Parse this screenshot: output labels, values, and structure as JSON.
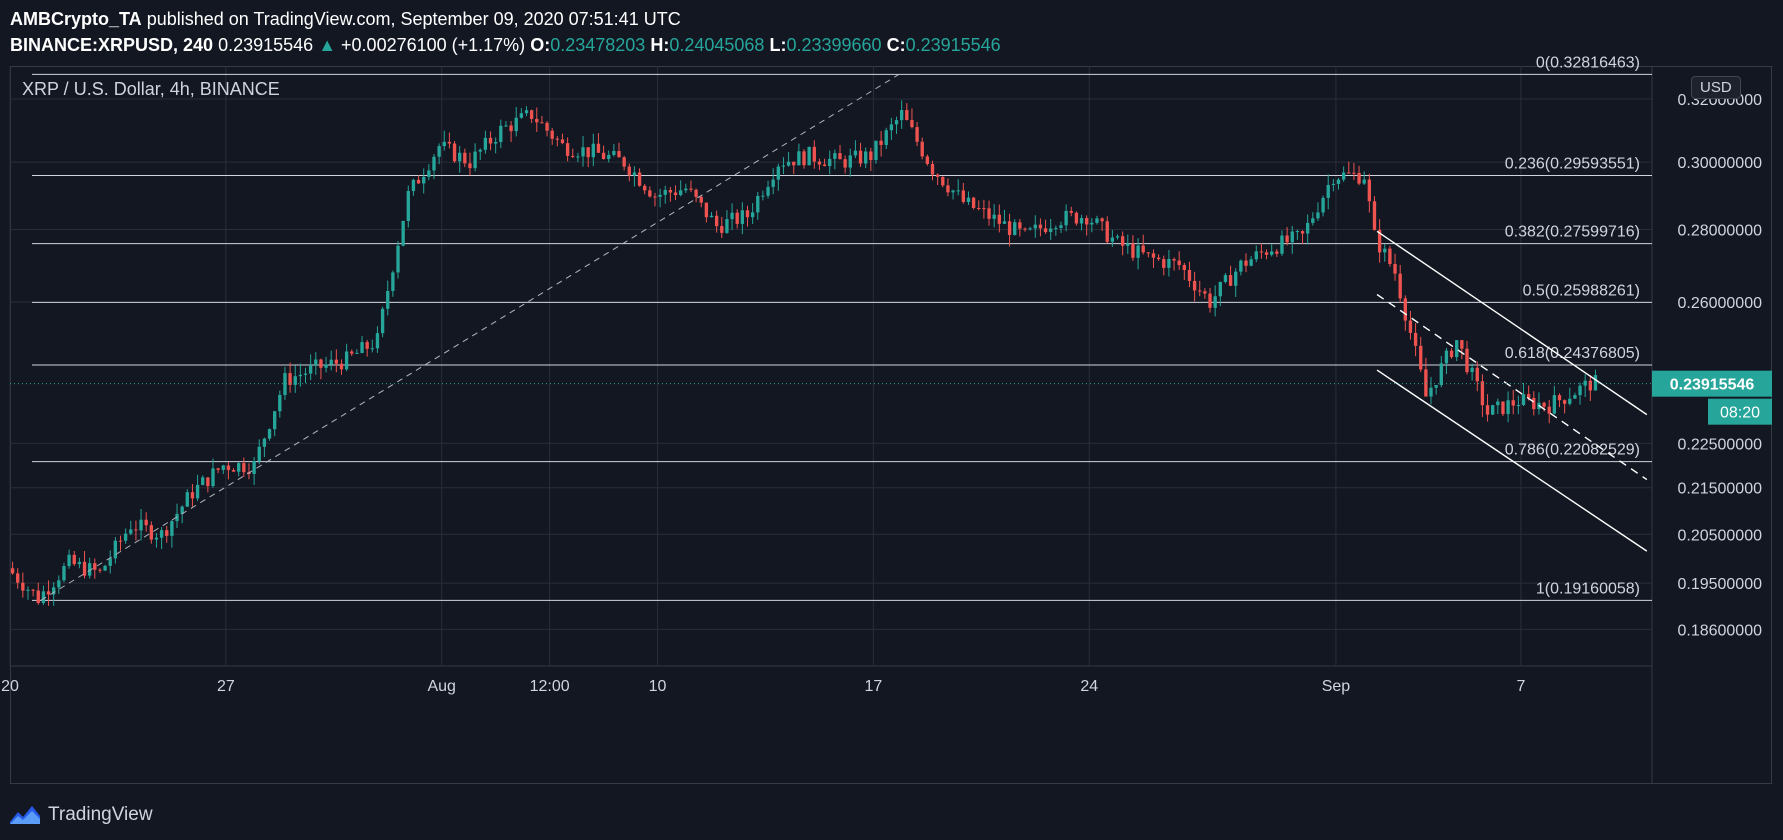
{
  "header": {
    "author": "AMBCrypto_TA",
    "published_text": "published on TradingView.com, September 09, 2020 07:51:41 UTC",
    "symbol": "BINANCE:XRPUSD, 240",
    "last": "0.23915546",
    "change_arrow": "▲",
    "change": "+0.00276100 (+1.17%)",
    "o_label": "O:",
    "o_value": "0.23478203",
    "h_label": "H:",
    "h_value": "0.24045068",
    "l_label": "L:",
    "l_value": "0.23399660",
    "c_label": "C:",
    "c_value": "0.23915546"
  },
  "symbol_title": "XRP / U.S. Dollar, 4h, BINANCE",
  "currency_badge": "USD",
  "footer": {
    "brand": "TradingView"
  },
  "colors": {
    "background": "#131722",
    "up": "#26a69a",
    "down": "#ef5350",
    "level_line": "#d1d4dc",
    "grid": "#2a2e39"
  },
  "chart_data": {
    "type": "candlestick",
    "title": "XRP / U.S. Dollar, 4h, BINANCE",
    "interval": "4h",
    "y_scale": "log",
    "ylim": [
      0.181,
      0.331
    ],
    "y_ticks": [
      0.186,
      0.195,
      0.205,
      0.215,
      0.225,
      0.26,
      0.28,
      0.3,
      0.32
    ],
    "y_tick_labels": [
      "0.18600000",
      "0.19500000",
      "0.20500000",
      "0.21500000",
      "0.22500000",
      "0.26000000",
      "0.28000000",
      "0.30000000",
      "0.32000000"
    ],
    "x_start": "2020-07-20",
    "x_end": "2020-09-11T06:00",
    "x_ticks": [
      {
        "date": "2020-07-20",
        "label": "20"
      },
      {
        "date": "2020-07-27",
        "label": "27"
      },
      {
        "date": "2020-08-03",
        "label": "Aug"
      },
      {
        "date": "2020-08-06T12:00",
        "label": "12:00"
      },
      {
        "date": "2020-08-10",
        "label": "10"
      },
      {
        "date": "2020-08-17",
        "label": "17"
      },
      {
        "date": "2020-08-24",
        "label": "24"
      },
      {
        "date": "2020-09-01",
        "label": "Sep"
      },
      {
        "date": "2020-09-07",
        "label": "7"
      }
    ],
    "last_price": {
      "value": 0.23915546,
      "label": "0.23915546",
      "countdown": "08:20"
    },
    "fib_levels": [
      {
        "ratio": 0,
        "value": 0.32816463,
        "label": "0(0.32816463)"
      },
      {
        "ratio": 0.236,
        "value": 0.29593551,
        "label": "0.236(0.29593551)"
      },
      {
        "ratio": 0.382,
        "value": 0.27599716,
        "label": "0.382(0.27599716)"
      },
      {
        "ratio": 0.5,
        "value": 0.25988261,
        "label": "0.5(0.25988261)"
      },
      {
        "ratio": 0.618,
        "value": 0.24376805,
        "label": "0.618(0.24376805)"
      },
      {
        "ratio": 0.786,
        "value": 0.22082529,
        "label": "0.786(0.22082529)"
      },
      {
        "ratio": 1,
        "value": 0.19160058,
        "label": "1(0.19160058)"
      }
    ],
    "fib_trend_line": {
      "from": {
        "date": "2020-07-21",
        "price": 0.1916
      },
      "to": {
        "date": "2020-08-17T20:00",
        "price": 0.3282
      }
    },
    "channel": {
      "upper": {
        "from": {
          "date": "2020-09-02T08:00",
          "price": 0.2795
        },
        "to": {
          "date": "2020-09-11T02:00",
          "price": 0.2317
        }
      },
      "lower": {
        "from": {
          "date": "2020-09-02T08:00",
          "price": 0.2425
        },
        "to": {
          "date": "2020-09-11T02:00",
          "price": 0.2015
        }
      },
      "mid": {
        "from": {
          "date": "2020-09-02T08:00",
          "price": 0.262
        },
        "to": {
          "date": "2020-09-11T02:00",
          "price": 0.2168
        }
      }
    },
    "price_path": [
      [
        "2020-07-20",
        0.198
      ],
      [
        "2020-07-21",
        0.192
      ],
      [
        "2020-07-22",
        0.199
      ],
      [
        "2020-07-23",
        0.197
      ],
      [
        "2020-07-24",
        0.207
      ],
      [
        "2020-07-25",
        0.205
      ],
      [
        "2020-07-26",
        0.214
      ],
      [
        "2020-07-27",
        0.22
      ],
      [
        "2020-07-28",
        0.22
      ],
      [
        "2020-07-29",
        0.24
      ],
      [
        "2020-07-30",
        0.243
      ],
      [
        "2020-07-31",
        0.245
      ],
      [
        "2020-08-01",
        0.25
      ],
      [
        "2020-08-02",
        0.29
      ],
      [
        "2020-08-03",
        0.305
      ],
      [
        "2020-08-04",
        0.3
      ],
      [
        "2020-08-05",
        0.31
      ],
      [
        "2020-08-06",
        0.315
      ],
      [
        "2020-08-07",
        0.305
      ],
      [
        "2020-08-08",
        0.303
      ],
      [
        "2020-08-09",
        0.3
      ],
      [
        "2020-08-10",
        0.29
      ],
      [
        "2020-08-11",
        0.292
      ],
      [
        "2020-08-12",
        0.281
      ],
      [
        "2020-08-13",
        0.284
      ],
      [
        "2020-08-14",
        0.3
      ],
      [
        "2020-08-15",
        0.302
      ],
      [
        "2020-08-16",
        0.3
      ],
      [
        "2020-08-17",
        0.302
      ],
      [
        "2020-08-18",
        0.315
      ],
      [
        "2020-08-19",
        0.298
      ],
      [
        "2020-08-20",
        0.288
      ],
      [
        "2020-08-21",
        0.283
      ],
      [
        "2020-08-22",
        0.278
      ],
      [
        "2020-08-23",
        0.283
      ],
      [
        "2020-08-24",
        0.284
      ],
      [
        "2020-08-25",
        0.276
      ],
      [
        "2020-08-26",
        0.272
      ],
      [
        "2020-08-27",
        0.27
      ],
      [
        "2020-08-28",
        0.26
      ],
      [
        "2020-08-29",
        0.27
      ],
      [
        "2020-08-30",
        0.275
      ],
      [
        "2020-08-31",
        0.278
      ],
      [
        "2020-09-01",
        0.296
      ],
      [
        "2020-09-02",
        0.296
      ],
      [
        "2020-09-02T08:00",
        0.278
      ],
      [
        "2020-09-03",
        0.268
      ],
      [
        "2020-09-04",
        0.236
      ],
      [
        "2020-09-05",
        0.25
      ],
      [
        "2020-09-06",
        0.232
      ],
      [
        "2020-09-07",
        0.235
      ],
      [
        "2020-09-08",
        0.234
      ],
      [
        "2020-09-09T08:00",
        0.2392
      ]
    ]
  }
}
